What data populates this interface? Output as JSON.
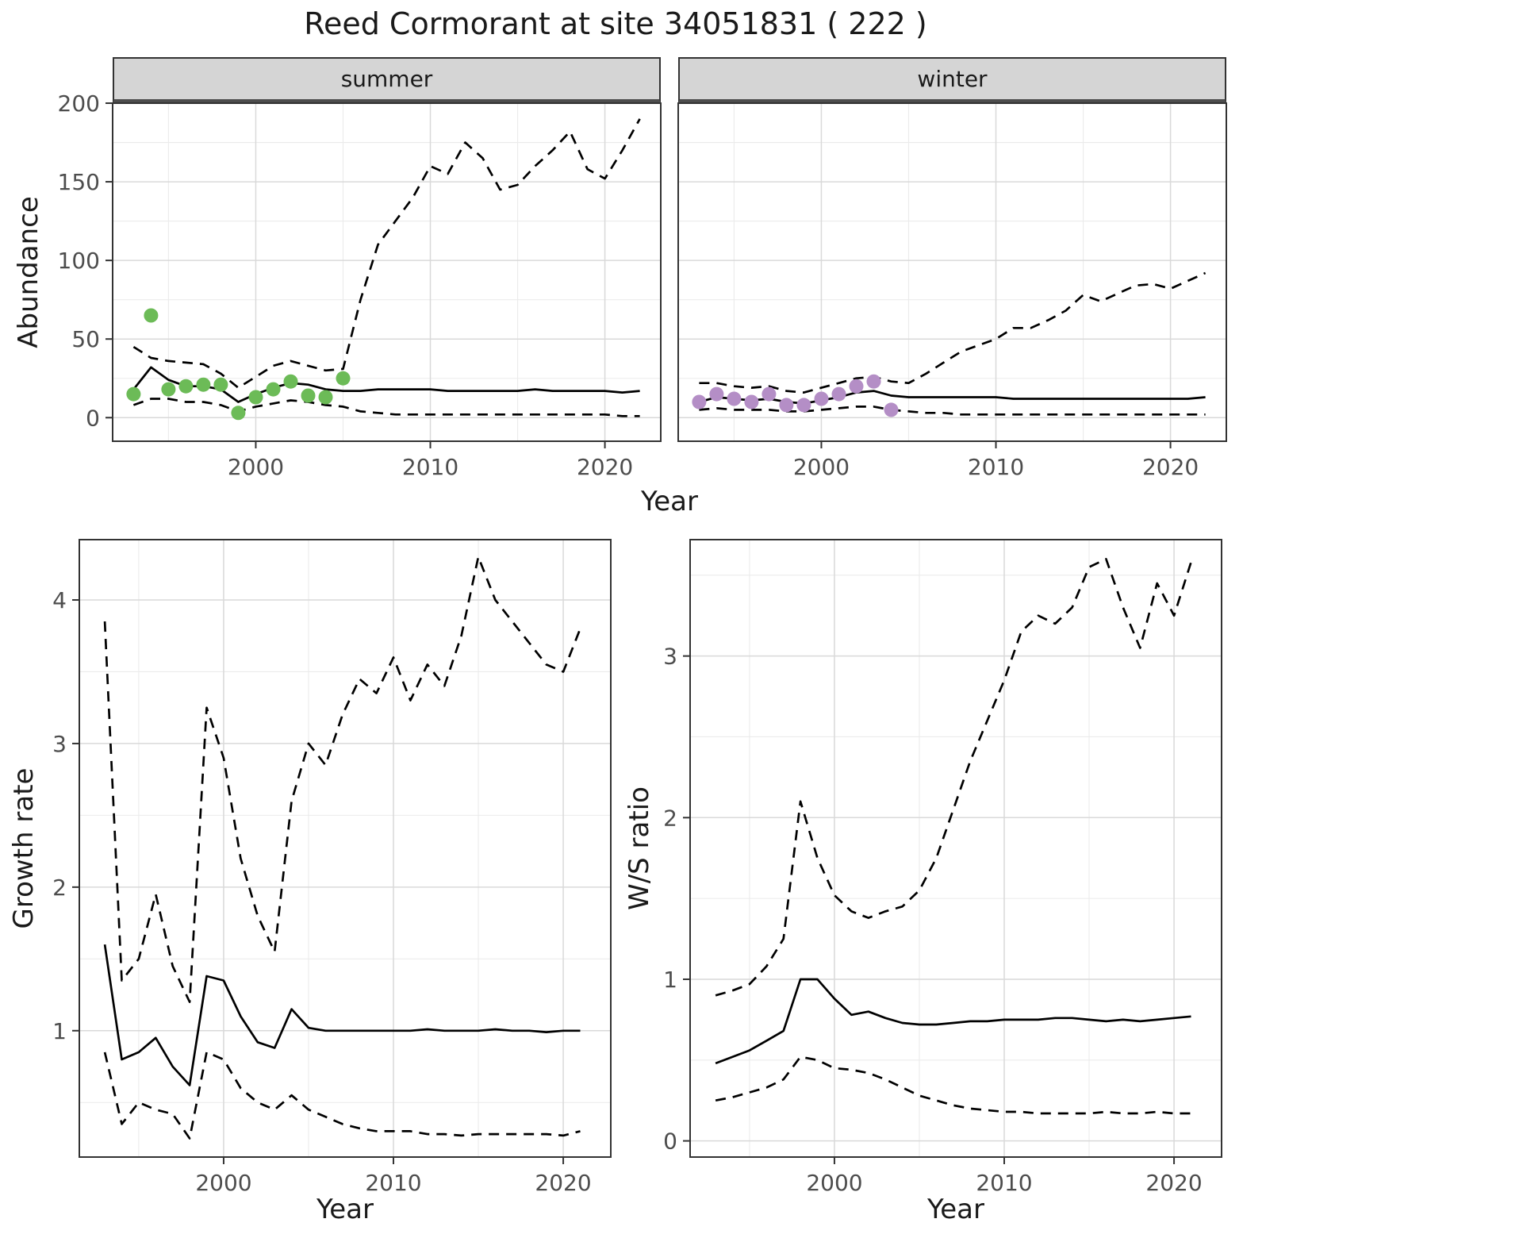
{
  "title": "Reed Cormorant at site 34051831 ( 222 )",
  "facets": [
    {
      "label": "summer"
    },
    {
      "label": "winter"
    }
  ],
  "axis_labels": {
    "year": "Year",
    "abundance": "Abundance",
    "growth_rate": "Growth rate",
    "ws_ratio": "W/S ratio"
  },
  "colors": {
    "summer_points": "#6cbb57",
    "winter_points": "#b48ec6",
    "line": "#000000",
    "strip_bg": "#d5d5d5"
  },
  "chart_data": [
    {
      "id": "abundance_summer",
      "type": "line",
      "title": "summer",
      "xlabel": "Year",
      "ylabel": "Abundance",
      "xlim": [
        1991.8,
        2023.2
      ],
      "ylim": [
        -15,
        200
      ],
      "xticks": [
        2000,
        2010,
        2020
      ],
      "yticks": [
        0,
        50,
        100,
        150,
        200
      ],
      "grid": true,
      "x": [
        1993,
        1994,
        1995,
        1996,
        1997,
        1998,
        1999,
        2000,
        2001,
        2002,
        2003,
        2004,
        2005,
        2006,
        2007,
        2008,
        2009,
        2010,
        2011,
        2012,
        2013,
        2014,
        2015,
        2016,
        2017,
        2018,
        2019,
        2020,
        2021,
        2022
      ],
      "series": [
        {
          "name": "median_fit",
          "style": "solid",
          "values": [
            18,
            32,
            24,
            20,
            20,
            18,
            10,
            15,
            19,
            22,
            21,
            18,
            17,
            17,
            18,
            18,
            18,
            18,
            17,
            17,
            17,
            17,
            17,
            18,
            17,
            17,
            17,
            17,
            16,
            17
          ]
        },
        {
          "name": "upper_ci",
          "style": "dashed",
          "values": [
            45,
            38,
            36,
            35,
            34,
            28,
            19,
            26,
            33,
            36,
            33,
            30,
            31,
            75,
            110,
            125,
            140,
            160,
            155,
            175,
            165,
            145,
            148,
            160,
            170,
            182,
            158,
            152,
            170,
            190
          ]
        },
        {
          "name": "lower_ci",
          "style": "dashed",
          "values": [
            8,
            12,
            12,
            10,
            10,
            8,
            4,
            7,
            9,
            11,
            10,
            8,
            7,
            4,
            3,
            2,
            2,
            2,
            2,
            2,
            2,
            2,
            2,
            2,
            2,
            2,
            2,
            2,
            1,
            1
          ]
        }
      ],
      "points": {
        "name": "observed_counts",
        "color": "#6cbb57",
        "x": [
          1993,
          1994,
          1995,
          1996,
          1997,
          1998,
          1999,
          2000,
          2001,
          2002,
          2003,
          2004,
          2005
        ],
        "y": [
          15,
          65,
          18,
          20,
          21,
          21,
          3,
          13,
          18,
          23,
          14,
          13,
          25
        ]
      }
    },
    {
      "id": "abundance_winter",
      "type": "line",
      "title": "winter",
      "xlabel": "Year",
      "ylabel": "Abundance",
      "xlim": [
        1991.8,
        2023.2
      ],
      "ylim": [
        -15,
        200
      ],
      "xticks": [
        2000,
        2010,
        2020
      ],
      "yticks": [
        0,
        50,
        100,
        150,
        200
      ],
      "grid": true,
      "x": [
        1993,
        1994,
        1995,
        1996,
        1997,
        1998,
        1999,
        2000,
        2001,
        2002,
        2003,
        2004,
        2005,
        2006,
        2007,
        2008,
        2009,
        2010,
        2011,
        2012,
        2013,
        2014,
        2015,
        2016,
        2017,
        2018,
        2019,
        2020,
        2021,
        2022
      ],
      "series": [
        {
          "name": "median_fit",
          "style": "solid",
          "values": [
            10,
            13,
            12,
            11,
            12,
            10,
            9,
            11,
            13,
            16,
            17,
            14,
            13,
            13,
            13,
            13,
            13,
            13,
            12,
            12,
            12,
            12,
            12,
            12,
            12,
            12,
            12,
            12,
            12,
            13
          ]
        },
        {
          "name": "upper_ci",
          "style": "dashed",
          "values": [
            22,
            22,
            20,
            19,
            20,
            17,
            16,
            19,
            22,
            25,
            26,
            23,
            22,
            28,
            35,
            42,
            46,
            50,
            57,
            57,
            62,
            68,
            78,
            74,
            79,
            84,
            85,
            82,
            87,
            92
          ]
        },
        {
          "name": "lower_ci",
          "style": "dashed",
          "values": [
            5,
            6,
            5,
            5,
            5,
            4,
            4,
            5,
            6,
            7,
            7,
            5,
            4,
            3,
            3,
            2,
            2,
            2,
            2,
            2,
            2,
            2,
            2,
            2,
            2,
            2,
            2,
            2,
            2,
            2
          ]
        }
      ],
      "points": {
        "name": "observed_counts",
        "color": "#b48ec6",
        "x": [
          1993,
          1994,
          1995,
          1996,
          1997,
          1998,
          1999,
          2000,
          2001,
          2002,
          2003,
          2004
        ],
        "y": [
          10,
          15,
          12,
          10,
          15,
          8,
          8,
          12,
          15,
          20,
          23,
          5
        ]
      }
    },
    {
      "id": "growth_rate",
      "type": "line",
      "title": "Growth rate",
      "xlabel": "Year",
      "ylabel": "Growth rate",
      "xlim": [
        1991.5,
        2022.8
      ],
      "ylim": [
        0.12,
        4.42
      ],
      "xticks": [
        2000,
        2010,
        2020
      ],
      "yticks": [
        1,
        2,
        3,
        4
      ],
      "grid": true,
      "x": [
        1993,
        1994,
        1995,
        1996,
        1997,
        1998,
        1999,
        2000,
        2001,
        2002,
        2003,
        2004,
        2005,
        2006,
        2007,
        2008,
        2009,
        2010,
        2011,
        2012,
        2013,
        2014,
        2015,
        2016,
        2017,
        2018,
        2019,
        2020,
        2021
      ],
      "series": [
        {
          "name": "median_fit",
          "style": "solid",
          "values": [
            1.6,
            0.8,
            0.85,
            0.95,
            0.75,
            0.62,
            1.38,
            1.35,
            1.1,
            0.92,
            0.88,
            1.15,
            1.02,
            1.0,
            1.0,
            1.0,
            1.0,
            1.0,
            1.0,
            1.01,
            1.0,
            1.0,
            1.0,
            1.01,
            1.0,
            1.0,
            0.99,
            1.0,
            1.0
          ]
        },
        {
          "name": "upper_ci",
          "style": "dashed",
          "values": [
            3.85,
            1.35,
            1.5,
            1.95,
            1.45,
            1.2,
            3.25,
            2.9,
            2.2,
            1.8,
            1.55,
            2.6,
            3.0,
            2.85,
            3.2,
            3.45,
            3.35,
            3.6,
            3.3,
            3.55,
            3.4,
            3.75,
            4.3,
            4.0,
            3.85,
            3.7,
            3.55,
            3.5,
            3.8
          ]
        },
        {
          "name": "lower_ci",
          "style": "dashed",
          "values": [
            0.85,
            0.35,
            0.5,
            0.45,
            0.42,
            0.25,
            0.85,
            0.8,
            0.6,
            0.5,
            0.45,
            0.55,
            0.45,
            0.4,
            0.35,
            0.32,
            0.3,
            0.3,
            0.3,
            0.28,
            0.28,
            0.27,
            0.28,
            0.28,
            0.28,
            0.28,
            0.28,
            0.27,
            0.3
          ]
        }
      ]
    },
    {
      "id": "ws_ratio",
      "type": "line",
      "title": "W/S ratio",
      "xlabel": "Year",
      "ylabel": "W/S ratio",
      "xlim": [
        1991.5,
        2022.8
      ],
      "ylim": [
        -0.1,
        3.72
      ],
      "xticks": [
        2000,
        2010,
        2020
      ],
      "yticks": [
        0,
        1,
        2,
        3
      ],
      "grid": true,
      "x": [
        1993,
        1994,
        1995,
        1996,
        1997,
        1998,
        1999,
        2000,
        2001,
        2002,
        2003,
        2004,
        2005,
        2006,
        2007,
        2008,
        2009,
        2010,
        2011,
        2012,
        2013,
        2014,
        2015,
        2016,
        2017,
        2018,
        2019,
        2020,
        2021
      ],
      "series": [
        {
          "name": "median_fit",
          "style": "solid",
          "values": [
            0.48,
            0.52,
            0.56,
            0.62,
            0.68,
            1.0,
            1.0,
            0.88,
            0.78,
            0.8,
            0.76,
            0.73,
            0.72,
            0.72,
            0.73,
            0.74,
            0.74,
            0.75,
            0.75,
            0.75,
            0.76,
            0.76,
            0.75,
            0.74,
            0.75,
            0.74,
            0.75,
            0.76,
            0.77
          ]
        },
        {
          "name": "upper_ci",
          "style": "dashed",
          "values": [
            0.9,
            0.93,
            0.97,
            1.08,
            1.25,
            2.1,
            1.75,
            1.52,
            1.42,
            1.38,
            1.42,
            1.45,
            1.55,
            1.75,
            2.05,
            2.35,
            2.6,
            2.85,
            3.15,
            3.25,
            3.2,
            3.3,
            3.55,
            3.6,
            3.3,
            3.05,
            3.45,
            3.25,
            3.58
          ]
        },
        {
          "name": "lower_ci",
          "style": "dashed",
          "values": [
            0.25,
            0.27,
            0.3,
            0.33,
            0.38,
            0.52,
            0.5,
            0.45,
            0.44,
            0.42,
            0.38,
            0.33,
            0.28,
            0.25,
            0.22,
            0.2,
            0.19,
            0.18,
            0.18,
            0.17,
            0.17,
            0.17,
            0.17,
            0.18,
            0.17,
            0.17,
            0.18,
            0.17,
            0.17
          ]
        }
      ]
    }
  ]
}
